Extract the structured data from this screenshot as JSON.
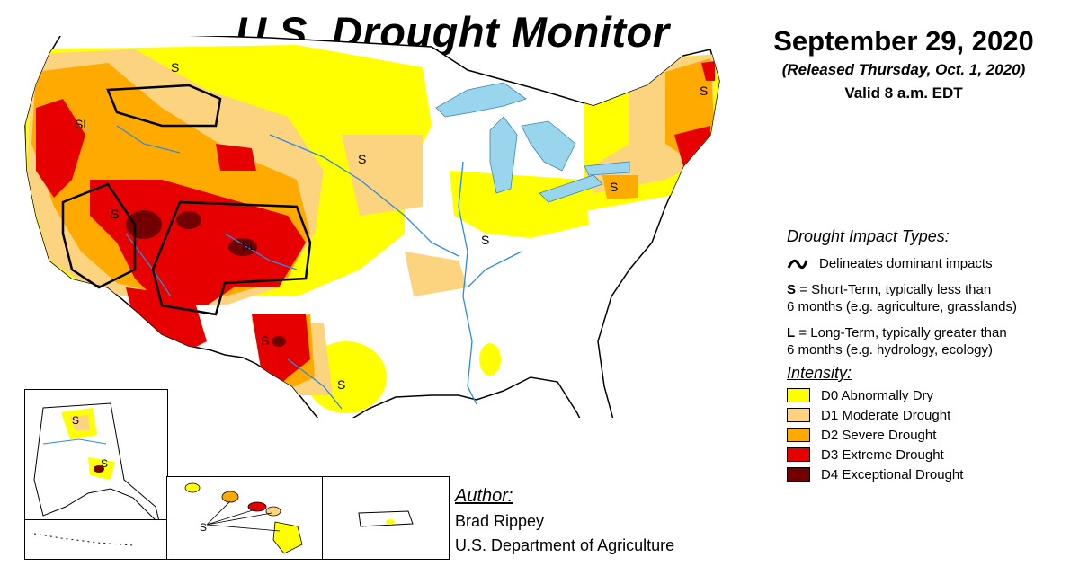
{
  "title": "U.S. Drought Monitor",
  "date": {
    "main": "September 29, 2020",
    "released": "(Released Thursday, Oct. 1, 2020)",
    "valid": "Valid 8 a.m. EDT"
  },
  "impact_types": {
    "heading": "Drought Impact Types:",
    "delineates": "Delineates dominant impacts",
    "short_term_abbr": "S",
    "short_term_line1": " = Short-Term, typically less than",
    "short_term_line2": "6 months (e.g. agriculture, grasslands)",
    "long_term_abbr": "L",
    "long_term_line1": " = Long-Term, typically greater than",
    "long_term_line2": "6 months (e.g. hydrology, ecology)"
  },
  "intensity": {
    "heading": "Intensity:",
    "levels": [
      {
        "label": "D0 Abnormally Dry",
        "color": "#ffff00"
      },
      {
        "label": "D1 Moderate Drought",
        "color": "#fcd37f"
      },
      {
        "label": "D2 Severe Drought",
        "color": "#ffaa00"
      },
      {
        "label": "D3 Extreme Drought",
        "color": "#e60000"
      },
      {
        "label": "D4 Exceptional Drought",
        "color": "#730000"
      }
    ]
  },
  "author": {
    "heading": "Author:",
    "name": "Brad Rippey",
    "org": "U.S. Department of Agriculture"
  },
  "map_labels": {
    "s": "S",
    "sl": "SL",
    "l": "L"
  },
  "colors": {
    "water": "#99d6ee",
    "outline": "#000000",
    "rivers": "#2b8ce0"
  }
}
